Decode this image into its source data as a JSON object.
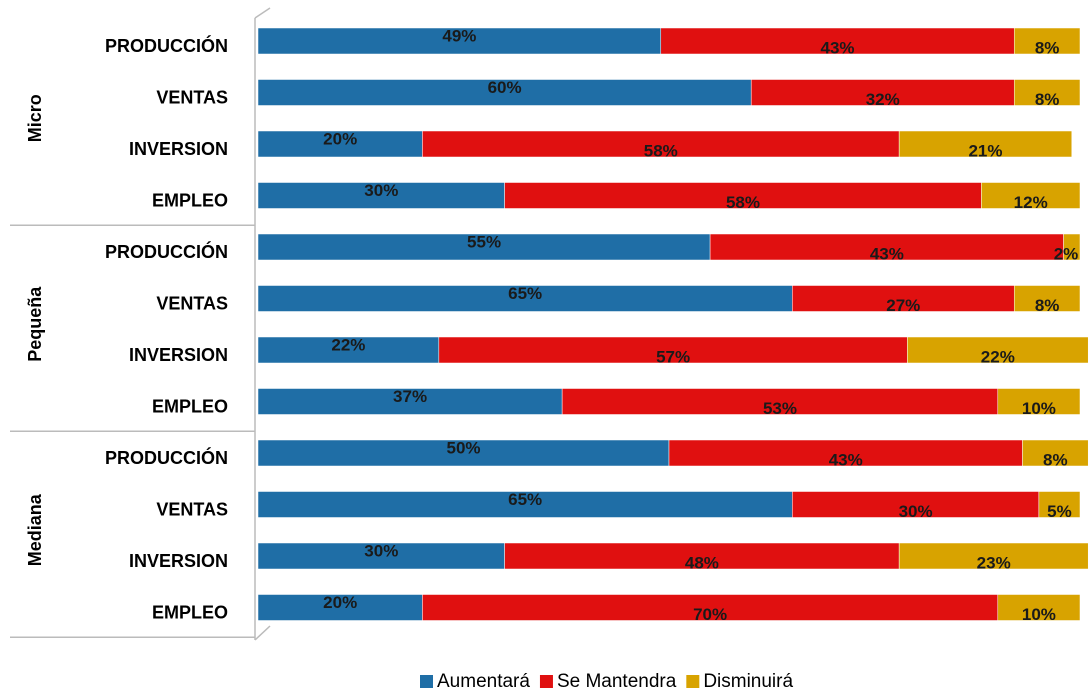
{
  "chart_data": {
    "type": "stacked-barh",
    "groups": [
      {
        "name": "Micro",
        "categories": [
          "PRODUCCIÓN",
          "VENTAS",
          "INVERSION",
          "EMPLEO"
        ]
      },
      {
        "name": "Pequeña",
        "categories": [
          "PRODUCCIÓN",
          "VENTAS",
          "INVERSION",
          "EMPLEO"
        ]
      },
      {
        "name": "Mediana",
        "categories": [
          "PRODUCCIÓN",
          "VENTAS",
          "INVERSION",
          "EMPLEO"
        ]
      }
    ],
    "series": [
      {
        "name": "Aumentará",
        "color": "#1f6ea6",
        "values": [
          49,
          60,
          20,
          30,
          55,
          65,
          22,
          37,
          50,
          65,
          30,
          20
        ],
        "value_labels": [
          "49%",
          "60%",
          "20%",
          "30%",
          "55%",
          "65%",
          "22%",
          "37%",
          "50%",
          "65%",
          "30%",
          "20%"
        ]
      },
      {
        "name": "Se Mantendra",
        "color": "#e01010",
        "values": [
          43,
          32,
          58,
          58,
          43,
          27,
          57,
          53,
          43,
          30,
          48,
          70
        ],
        "value_labels": [
          "43%",
          "32%",
          "58%",
          "58%",
          "43%",
          "27%",
          "57%",
          "53%",
          "43%",
          "30%",
          "48%",
          "70%"
        ]
      },
      {
        "name": "Disminuirá",
        "color": "#d8a300",
        "values": [
          8,
          8,
          21,
          12,
          2,
          8,
          22,
          10,
          8,
          5,
          23,
          10
        ],
        "value_labels": [
          "8%",
          "8%",
          "21%",
          "12%",
          "2%",
          "8%",
          "22%",
          "10%",
          "8%",
          "5%",
          "23%",
          "10%"
        ]
      }
    ],
    "xlim": [
      0,
      100
    ]
  }
}
